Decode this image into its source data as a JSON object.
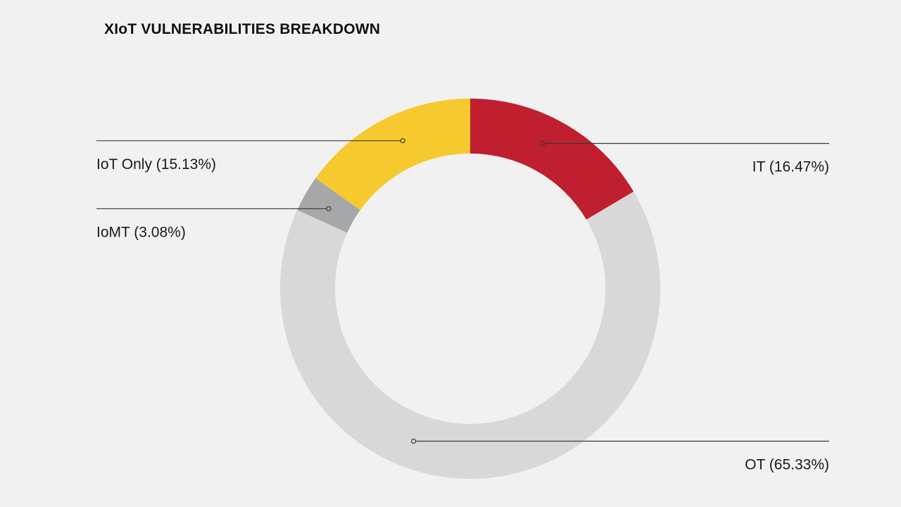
{
  "chart_data": {
    "type": "pie",
    "variant": "donut",
    "title": "XIoT VULNERABILITIES BREAKDOWN",
    "start": "12 o'clock",
    "direction": "clockwise",
    "slices": [
      {
        "name": "IT",
        "value": 16.47,
        "label": "IT (16.47%)",
        "color": "#c01f2f",
        "label_side": "right"
      },
      {
        "name": "OT",
        "value": 65.33,
        "label": "OT (65.33%)",
        "color": "#d9d8d8",
        "label_side": "right"
      },
      {
        "name": "IoMT",
        "value": 3.08,
        "label": "IoMT (3.08%)",
        "color": "#a6a7a9",
        "label_side": "left"
      },
      {
        "name": "IoT Only",
        "value": 15.13,
        "label": "IoT Only (15.13%)",
        "color": "#f6c92e",
        "label_side": "left"
      }
    ]
  },
  "colors": {
    "background": "#f1f1f1",
    "leader_line": "#3a3a3a",
    "text": "#1a1a1a"
  }
}
